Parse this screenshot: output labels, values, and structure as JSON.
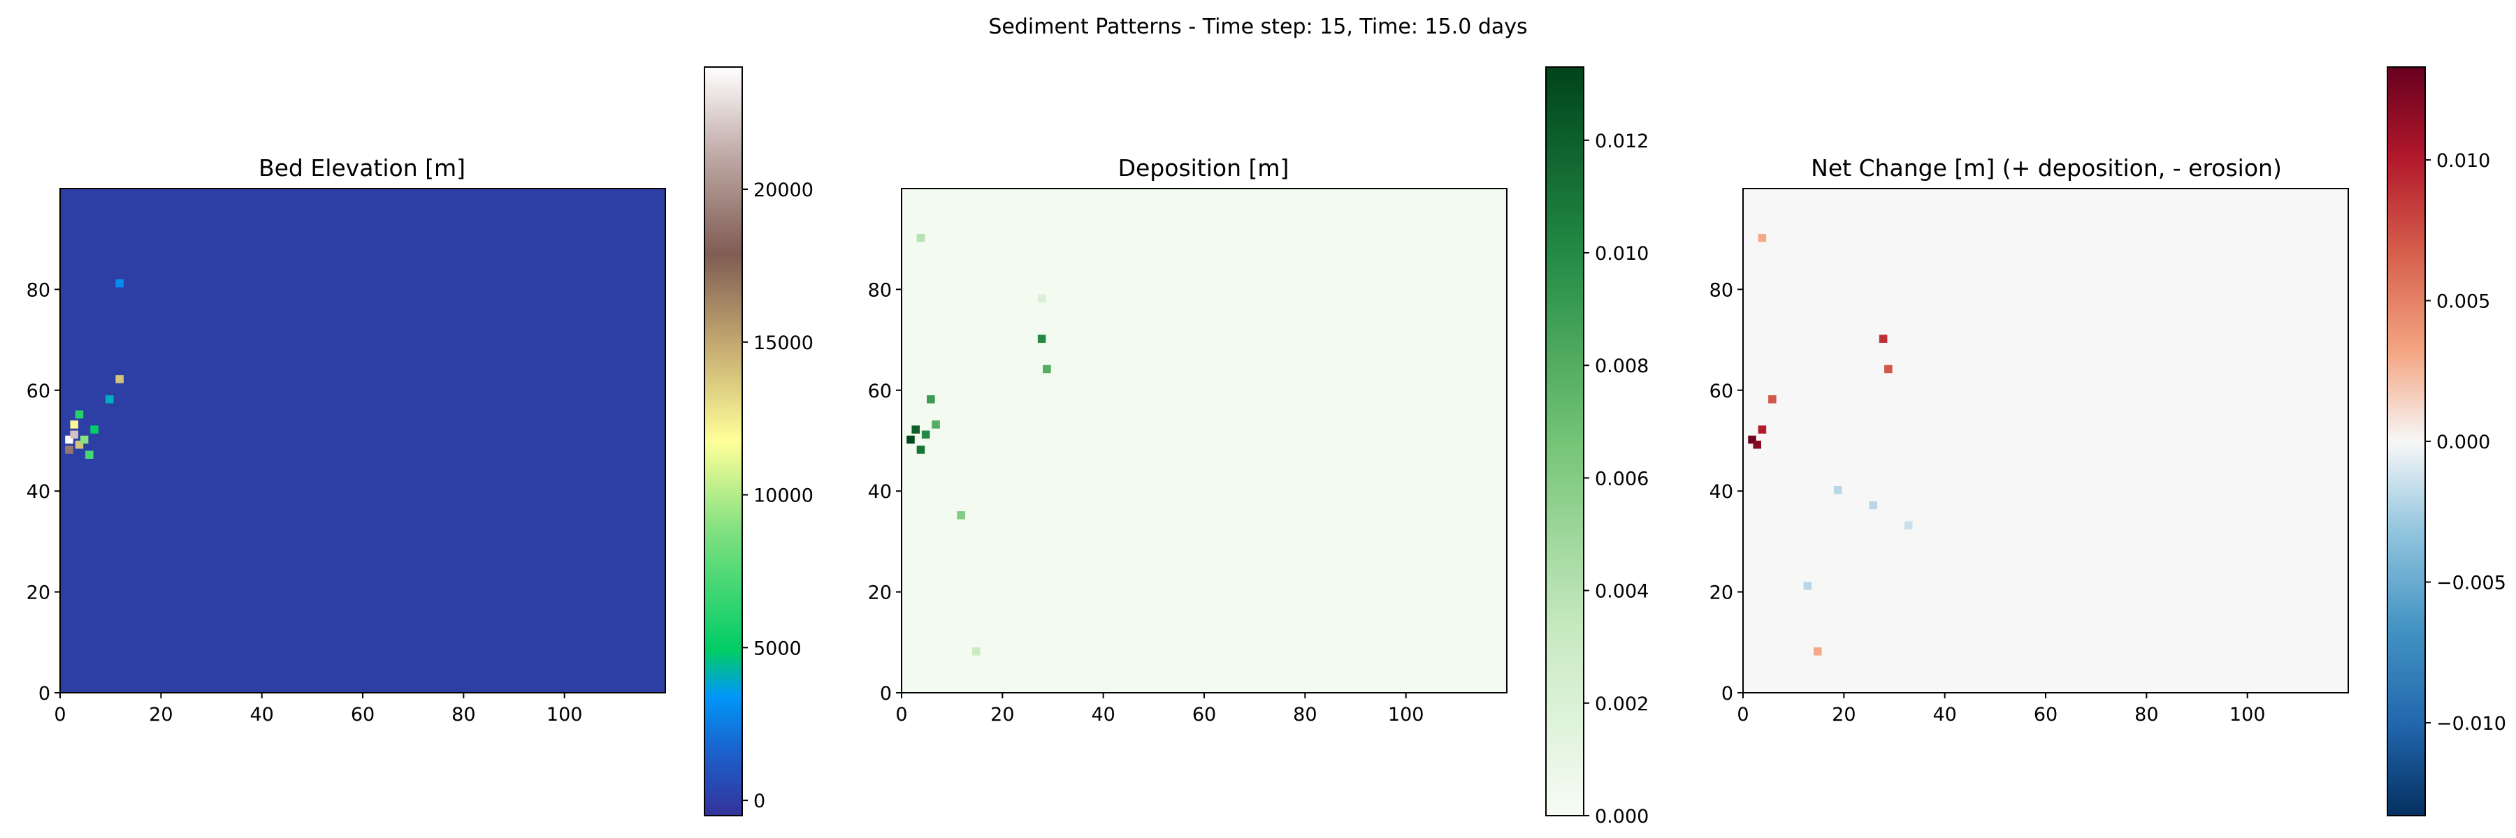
{
  "figure": {
    "suptitle": "Sediment Patterns - Time step: 15, Time: 15.0 days"
  },
  "chart_data": [
    {
      "type": "heatmap",
      "title": "Bed Elevation [m]",
      "xlabel": "",
      "ylabel": "",
      "xlim": [
        0,
        120
      ],
      "ylim": [
        0,
        100
      ],
      "x_ticks": [
        "0",
        "20",
        "40",
        "60",
        "80",
        "100"
      ],
      "y_ticks": [
        "0",
        "20",
        "40",
        "60",
        "80"
      ],
      "colormap": "terrain",
      "colorbar": {
        "range": [
          -500,
          24000
        ],
        "ticks": [
          "0",
          "5000",
          "10000",
          "15000",
          "20000"
        ]
      },
      "background_value": 0,
      "hotspots": [
        {
          "x": 1,
          "y": 50,
          "value": 24000
        },
        {
          "x": 2,
          "y": 51,
          "value": 22000
        },
        {
          "x": 1,
          "y": 48,
          "value": 19000
        },
        {
          "x": 3,
          "y": 49,
          "value": 14000
        },
        {
          "x": 2,
          "y": 53,
          "value": 12000
        },
        {
          "x": 4,
          "y": 50,
          "value": 9000
        },
        {
          "x": 5,
          "y": 47,
          "value": 7000
        },
        {
          "x": 3,
          "y": 55,
          "value": 6000
        },
        {
          "x": 6,
          "y": 52,
          "value": 5000
        },
        {
          "x": 11,
          "y": 62,
          "value": 14000
        },
        {
          "x": 11,
          "y": 81,
          "value": 3000
        },
        {
          "x": 9,
          "y": 58,
          "value": 4000
        }
      ]
    },
    {
      "type": "heatmap",
      "title": "Deposition [m]",
      "xlabel": "",
      "ylabel": "",
      "xlim": [
        0,
        120
      ],
      "ylim": [
        0,
        100
      ],
      "x_ticks": [
        "0",
        "20",
        "40",
        "60",
        "80",
        "100"
      ],
      "y_ticks": [
        "0",
        "20",
        "40",
        "60",
        "80"
      ],
      "colormap": "Greens",
      "colorbar": {
        "range": [
          0,
          0.0133
        ],
        "ticks": [
          "0.000",
          "0.002",
          "0.004",
          "0.006",
          "0.008",
          "0.010",
          "0.012"
        ]
      },
      "background_value": 0.0003,
      "hotspots": [
        {
          "x": 1,
          "y": 50,
          "value": 0.013
        },
        {
          "x": 2,
          "y": 52,
          "value": 0.012
        },
        {
          "x": 3,
          "y": 48,
          "value": 0.011
        },
        {
          "x": 4,
          "y": 51,
          "value": 0.01
        },
        {
          "x": 5,
          "y": 58,
          "value": 0.009
        },
        {
          "x": 6,
          "y": 53,
          "value": 0.008
        },
        {
          "x": 27,
          "y": 70,
          "value": 0.01
        },
        {
          "x": 28,
          "y": 64,
          "value": 0.008
        },
        {
          "x": 3,
          "y": 90,
          "value": 0.004
        },
        {
          "x": 11,
          "y": 35,
          "value": 0.006
        },
        {
          "x": 14,
          "y": 8,
          "value": 0.003
        },
        {
          "x": 27,
          "y": 78,
          "value": 0.002
        }
      ]
    },
    {
      "type": "heatmap",
      "title": "Net Change [m] (+ deposition, - erosion)",
      "xlabel": "",
      "ylabel": "",
      "xlim": [
        0,
        120
      ],
      "ylim": [
        0,
        100
      ],
      "x_ticks": [
        "0",
        "20",
        "40",
        "60",
        "80",
        "100"
      ],
      "y_ticks": [
        "0",
        "20",
        "40",
        "60",
        "80"
      ],
      "colormap": "RdBu_r",
      "colorbar": {
        "range": [
          -0.0133,
          0.0133
        ],
        "ticks": [
          "0.010",
          "0.005",
          "0.000",
          "−0.005",
          "−0.010"
        ]
      },
      "background_value": 0,
      "hotspots": [
        {
          "x": 1,
          "y": 50,
          "value": 0.013
        },
        {
          "x": 2,
          "y": 49,
          "value": 0.012
        },
        {
          "x": 3,
          "y": 52,
          "value": 0.01
        },
        {
          "x": 5,
          "y": 58,
          "value": 0.007
        },
        {
          "x": 27,
          "y": 70,
          "value": 0.009
        },
        {
          "x": 28,
          "y": 64,
          "value": 0.007
        },
        {
          "x": 3,
          "y": 90,
          "value": 0.003
        },
        {
          "x": 14,
          "y": 8,
          "value": 0.003
        },
        {
          "x": 18,
          "y": 40,
          "value": -0.002
        },
        {
          "x": 25,
          "y": 37,
          "value": -0.002
        },
        {
          "x": 32,
          "y": 33,
          "value": -0.0015
        },
        {
          "x": 12,
          "y": 21,
          "value": -0.002
        }
      ]
    }
  ]
}
